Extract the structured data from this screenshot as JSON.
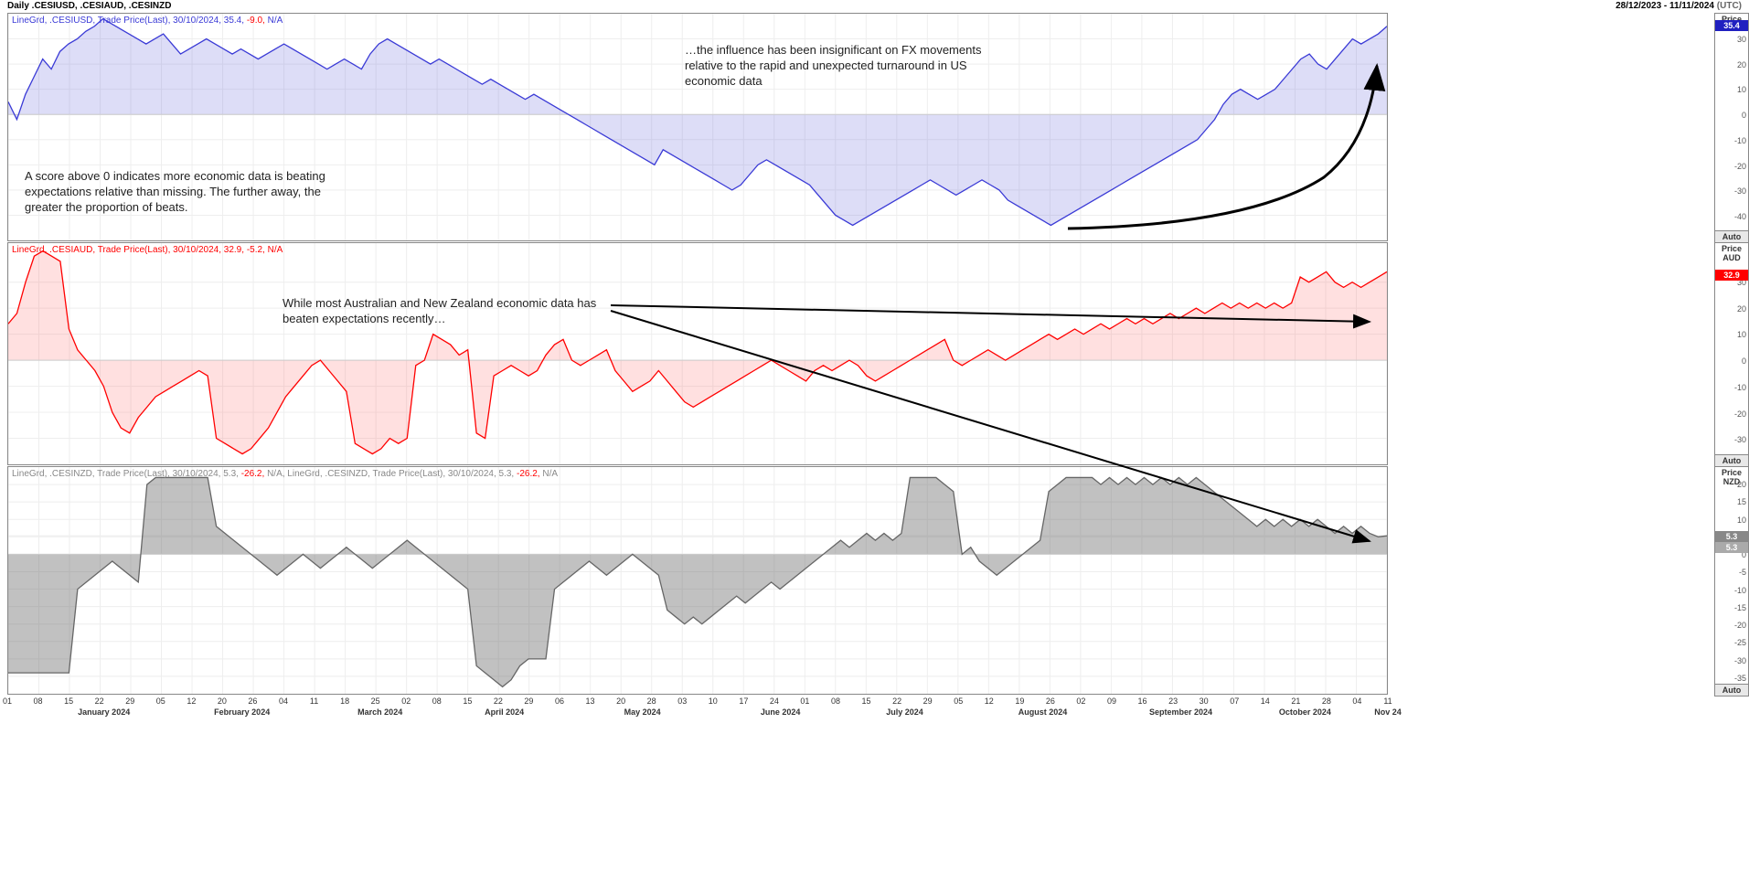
{
  "header": {
    "title_left": "Daily .CESIUSD, .CESIAUD, .CESINZD",
    "title_right": "28/12/2023 - 11/11/2024",
    "tz": "(UTC)"
  },
  "xaxis": {
    "ticks": [
      "01",
      "08",
      "15",
      "22",
      "29",
      "05",
      "12",
      "20",
      "26",
      "04",
      "11",
      "18",
      "25",
      "02",
      "08",
      "15",
      "22",
      "29",
      "06",
      "13",
      "20",
      "28",
      "03",
      "10",
      "17",
      "24",
      "01",
      "08",
      "15",
      "22",
      "29",
      "05",
      "12",
      "19",
      "26",
      "02",
      "09",
      "16",
      "23",
      "30",
      "07",
      "14",
      "21",
      "28",
      "04",
      "11"
    ],
    "months": [
      "January 2024",
      "February 2024",
      "March 2024",
      "April 2024",
      "May 2024",
      "June 2024",
      "July 2024",
      "August 2024",
      "September 2024",
      "October 2024",
      "Nov 24"
    ],
    "month_positions_pct": [
      7,
      17,
      27,
      36,
      46,
      56,
      65,
      75,
      85,
      94,
      100
    ]
  },
  "usd": {
    "legend_prefix": "LineGrd, .CESIUSD, Trade Price(Last), ",
    "legend_date": "30/10/2024, ",
    "legend_val": "35.4, ",
    "legend_chg": "-9.0, ",
    "legend_na": "N/A",
    "color": "#3a3ad6",
    "fill": "rgba(100,100,220,0.22)",
    "price_label": "Price USD",
    "yticks": [
      30,
      20,
      10,
      0,
      -10,
      -20,
      -30,
      -40
    ],
    "ylim": [
      -50,
      40
    ],
    "current": "35.4",
    "marker_color": "#2020c0",
    "data": [
      5,
      -2,
      8,
      15,
      22,
      18,
      25,
      28,
      30,
      33,
      35,
      38,
      36,
      34,
      32,
      30,
      28,
      30,
      32,
      28,
      24,
      26,
      28,
      30,
      28,
      26,
      24,
      26,
      24,
      22,
      24,
      26,
      28,
      26,
      24,
      22,
      20,
      18,
      20,
      22,
      20,
      18,
      24,
      28,
      30,
      28,
      26,
      24,
      22,
      20,
      22,
      20,
      18,
      16,
      14,
      12,
      14,
      12,
      10,
      8,
      6,
      8,
      6,
      4,
      2,
      0,
      -2,
      -4,
      -6,
      -8,
      -10,
      -12,
      -14,
      -16,
      -18,
      -20,
      -14,
      -16,
      -18,
      -20,
      -22,
      -24,
      -26,
      -28,
      -30,
      -28,
      -24,
      -20,
      -18,
      -20,
      -22,
      -24,
      -26,
      -28,
      -32,
      -36,
      -40,
      -42,
      -44,
      -42,
      -40,
      -38,
      -36,
      -34,
      -32,
      -30,
      -28,
      -26,
      -28,
      -30,
      -32,
      -30,
      -28,
      -26,
      -28,
      -30,
      -34,
      -36,
      -38,
      -40,
      -42,
      -44,
      -42,
      -40,
      -38,
      -36,
      -34,
      -32,
      -30,
      -28,
      -26,
      -24,
      -22,
      -20,
      -18,
      -16,
      -14,
      -12,
      -10,
      -6,
      -2,
      4,
      8,
      10,
      8,
      6,
      8,
      10,
      14,
      18,
      22,
      24,
      20,
      18,
      22,
      26,
      30,
      28,
      30,
      32,
      35
    ]
  },
  "aud": {
    "legend_prefix": "LineGrd, .CESIAUD, Trade Price(Last), ",
    "legend_date": "30/10/2024, ",
    "legend_val": "32.9, ",
    "legend_chg": "-5.2, ",
    "legend_na": "N/A",
    "color": "#ff0000",
    "fill": "rgba(255,100,100,0.2)",
    "price_label": "Price AUD",
    "yticks": [
      30,
      20,
      10,
      0,
      -10,
      -20,
      -30
    ],
    "ylim": [
      -40,
      45
    ],
    "current": "32.9",
    "marker_color": "#ff0000",
    "data": [
      14,
      18,
      30,
      40,
      42,
      40,
      38,
      12,
      4,
      0,
      -4,
      -10,
      -20,
      -26,
      -28,
      -22,
      -18,
      -14,
      -12,
      -10,
      -8,
      -6,
      -4,
      -6,
      -30,
      -32,
      -34,
      -36,
      -34,
      -30,
      -26,
      -20,
      -14,
      -10,
      -6,
      -2,
      0,
      -4,
      -8,
      -12,
      -32,
      -34,
      -36,
      -34,
      -30,
      -32,
      -30,
      -2,
      0,
      10,
      8,
      6,
      2,
      4,
      -28,
      -30,
      -6,
      -4,
      -2,
      -4,
      -6,
      -4,
      2,
      6,
      8,
      0,
      -2,
      0,
      2,
      4,
      -4,
      -8,
      -12,
      -10,
      -8,
      -4,
      -8,
      -12,
      -16,
      -18,
      -16,
      -14,
      -12,
      -10,
      -8,
      -6,
      -4,
      -2,
      0,
      -2,
      -4,
      -6,
      -8,
      -4,
      -2,
      -4,
      -2,
      0,
      -2,
      -6,
      -8,
      -6,
      -4,
      -2,
      0,
      2,
      4,
      6,
      8,
      0,
      -2,
      0,
      2,
      4,
      2,
      0,
      2,
      4,
      6,
      8,
      10,
      8,
      10,
      12,
      10,
      12,
      14,
      12,
      14,
      16,
      14,
      16,
      14,
      16,
      18,
      16,
      18,
      20,
      18,
      20,
      22,
      20,
      22,
      20,
      22,
      20,
      22,
      20,
      22,
      32,
      30,
      32,
      34,
      30,
      28,
      30,
      28,
      30,
      32,
      34
    ]
  },
  "nzd": {
    "legend1_prefix": "LineGrd, .CESINZD, Trade Price(Last), ",
    "legend1_date": "30/10/2024, ",
    "legend1_val": "5.3, ",
    "legend1_chg": "-26.2, ",
    "legend1_na": "N/A, ",
    "legend2_prefix": "LineGrd, .CESINZD, Trade Price(Last), ",
    "legend2_date": "30/10/2024, ",
    "legend2_val": "5.3, ",
    "legend2_chg": "-26.2, ",
    "legend2_na": "N/A",
    "color": "#666666",
    "fill": "rgba(100,100,100,0.4)",
    "price_label": "Price NZD",
    "yticks": [
      20,
      15,
      10,
      5,
      "5.3",
      0,
      -5,
      -10,
      -15,
      -20,
      -25,
      -30,
      -35
    ],
    "ylim": [
      -40,
      25
    ],
    "current": "5.3",
    "current2": "5.3",
    "marker_color": "#888888",
    "data": [
      -34,
      -34,
      -34,
      -34,
      -34,
      -34,
      -34,
      -34,
      -10,
      -8,
      -6,
      -4,
      -2,
      -4,
      -6,
      -8,
      20,
      22,
      22,
      22,
      22,
      22,
      22,
      22,
      8,
      6,
      4,
      2,
      0,
      -2,
      -4,
      -6,
      -4,
      -2,
      0,
      -2,
      -4,
      -2,
      0,
      2,
      0,
      -2,
      -4,
      -2,
      0,
      2,
      4,
      2,
      0,
      -2,
      -4,
      -6,
      -8,
      -10,
      -32,
      -34,
      -36,
      -38,
      -36,
      -32,
      -30,
      -30,
      -30,
      -10,
      -8,
      -6,
      -4,
      -2,
      -4,
      -6,
      -4,
      -2,
      0,
      -2,
      -4,
      -6,
      -16,
      -18,
      -20,
      -18,
      -20,
      -18,
      -16,
      -14,
      -12,
      -14,
      -12,
      -10,
      -8,
      -10,
      -8,
      -6,
      -4,
      -2,
      0,
      2,
      4,
      2,
      4,
      6,
      4,
      6,
      4,
      6,
      22,
      22,
      22,
      22,
      20,
      18,
      0,
      2,
      -2,
      -4,
      -6,
      -4,
      -2,
      0,
      2,
      4,
      18,
      20,
      22,
      22,
      22,
      22,
      20,
      22,
      20,
      22,
      20,
      22,
      20,
      22,
      20,
      22,
      20,
      22,
      20,
      18,
      16,
      14,
      12,
      10,
      8,
      10,
      8,
      10,
      8,
      10,
      8,
      10,
      8,
      6,
      8,
      6,
      8,
      6,
      5,
      5.3
    ]
  },
  "annotations": {
    "a1": "A score above 0 indicates more economic data is beating expectations relative than missing. The further away, the greater the proportion of beats.",
    "a2": "…the influence has been insignificant on FX movements relative to the rapid and unexpected turnaround in US economic data",
    "a3": "While most Australian and New Zealand economic data has beaten expectations recently…"
  },
  "labels": {
    "auto": "Auto"
  }
}
